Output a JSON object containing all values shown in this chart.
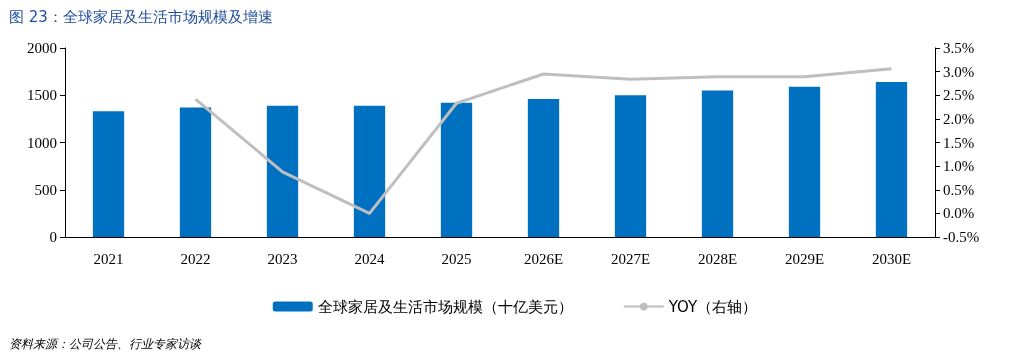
{
  "chart_data": {
    "type": "bar",
    "title": "图 23：全球家居及生活市场规模及增速",
    "categories": [
      "2021",
      "2022",
      "2023",
      "2024",
      "2025",
      "2026E",
      "2027E",
      "2028E",
      "2029E",
      "2030E"
    ],
    "series": [
      {
        "name": "全球家居及生活市场规模（十亿美元）",
        "color": "#0070c0",
        "values": [
          1330,
          1370,
          1390,
          1390,
          1420,
          1460,
          1500,
          1550,
          1590,
          1640
        ]
      },
      {
        "name": "YOY（右轴）",
        "type": "line",
        "axis": "y2",
        "color": "#bfbfbf",
        "values": [
          null,
          2.42,
          0.88,
          0.0,
          2.33,
          2.95,
          2.84,
          2.89,
          2.89,
          3.06
        ]
      }
    ],
    "ylim": [
      0,
      2000
    ],
    "yticks": [
      0,
      500,
      1000,
      1500,
      2000
    ],
    "y2lim": [
      -0.5,
      3.5
    ],
    "y2ticks": [
      {
        "value": -0.5,
        "label": "-0.5%"
      },
      {
        "value": 0,
        "label": "0.0%"
      },
      {
        "value": 0.5,
        "label": "0.5%"
      },
      {
        "value": 1,
        "label": "1.0%"
      },
      {
        "value": 1.5,
        "label": "1.5%"
      },
      {
        "value": 2,
        "label": "2.0%"
      },
      {
        "value": 2.5,
        "label": "2.5%"
      },
      {
        "value": 3,
        "label": "3.0%"
      },
      {
        "value": 3.5,
        "label": "3.5%"
      }
    ],
    "grid": false,
    "legend": "bottom",
    "marker": "none",
    "line_style": "solid",
    "annotations": [
      "资料来源：公司公告、行业专家访谈"
    ]
  }
}
